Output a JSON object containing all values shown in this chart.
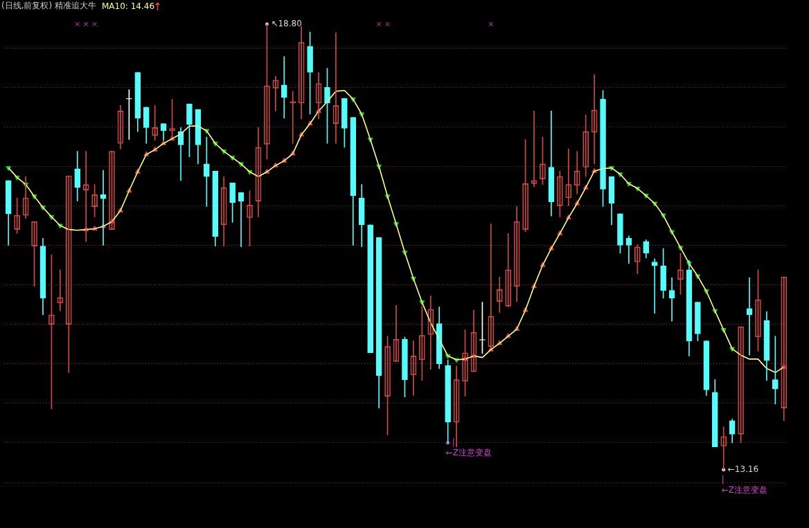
{
  "chart_data": {
    "type": "candlestick",
    "title": "(日线,前复权) 精准追大牛",
    "legend": "top left",
    "grid": "y",
    "yticks": [
      {
        "value": 13,
        "label": null
      },
      {
        "value": 13.5,
        "label": null
      },
      {
        "value": 14,
        "label": null
      },
      {
        "value": 14.5,
        "label": null
      },
      {
        "value": 15,
        "label": null
      },
      {
        "value": 15.5,
        "label": null
      },
      {
        "value": 16,
        "label": null
      },
      {
        "value": 16.5,
        "label": null
      },
      {
        "value": 17,
        "label": null
      },
      {
        "value": 17.5,
        "label": null
      },
      {
        "value": 18,
        "label": null
      },
      {
        "value": 18.5,
        "label": null
      }
    ],
    "categories": [
      null,
      null,
      null,
      null,
      null,
      null,
      null,
      null,
      null,
      null,
      null,
      null,
      null,
      null,
      null,
      null,
      null,
      null,
      null,
      null,
      null,
      null,
      null,
      null,
      null,
      null,
      null,
      null,
      null,
      null,
      null,
      null,
      null,
      null,
      null,
      null,
      null,
      null,
      null,
      null,
      null,
      null,
      null,
      null,
      null,
      null,
      null,
      null,
      null,
      null,
      null,
      null,
      null,
      null,
      null,
      null,
      null,
      null,
      null,
      null,
      null,
      null,
      null,
      null,
      null,
      null,
      null,
      null,
      null,
      null,
      null,
      null,
      null,
      null,
      null,
      null,
      null,
      null,
      null,
      null,
      null,
      null,
      null,
      null,
      null,
      null,
      null,
      null,
      null,
      null,
      null
    ],
    "ohlc": [
      [
        16.82,
        16.82,
        16.0,
        16.4
      ],
      [
        16.2,
        16.6,
        16.15,
        16.38
      ],
      [
        16.38,
        16.87,
        16.34,
        16.6
      ],
      [
        15.99,
        16.3,
        15.48,
        16.3
      ],
      [
        15.99,
        16.09,
        15.12,
        15.33
      ],
      [
        15.0,
        15.88,
        13.93,
        15.12
      ],
      [
        15.27,
        15.69,
        15.17,
        15.34
      ],
      [
        15.0,
        16.88,
        14.39,
        16.88
      ],
      [
        16.97,
        17.19,
        16.56,
        16.73
      ],
      [
        16.7,
        17.19,
        16.05,
        16.77
      ],
      [
        16.49,
        16.77,
        16.36,
        16.64
      ],
      [
        16.64,
        16.95,
        16.0,
        16.59
      ],
      [
        16.2,
        17.19,
        16.2,
        17.19
      ],
      [
        17.29,
        17.77,
        17.22,
        17.7
      ],
      [
        17.85,
        17.97,
        17.34,
        17.85
      ],
      [
        18.19,
        18.19,
        17.44,
        17.61
      ],
      [
        17.75,
        17.75,
        17.29,
        17.49
      ],
      [
        17.39,
        17.77,
        17.33,
        17.49
      ],
      [
        17.54,
        17.54,
        17.33,
        17.45
      ],
      [
        17.45,
        17.85,
        17.37,
        17.48
      ],
      [
        17.44,
        17.49,
        16.82,
        17.27
      ],
      [
        17.79,
        17.79,
        17.12,
        17.53
      ],
      [
        17.72,
        17.72,
        17.03,
        17.27
      ],
      [
        17.03,
        17.37,
        16.49,
        16.87
      ],
      [
        16.94,
        16.94,
        15.99,
        16.11
      ],
      [
        16.26,
        16.87,
        15.99,
        16.73
      ],
      [
        16.79,
        16.79,
        16.29,
        16.54
      ],
      [
        16.67,
        16.67,
        15.98,
        16.56
      ],
      [
        16.35,
        16.69,
        15.99,
        16.51
      ],
      [
        16.56,
        17.49,
        16.36,
        17.24
      ],
      [
        17.28,
        18.8,
        17.09,
        18.02
      ],
      [
        17.99,
        18.14,
        17.7,
        18.09
      ],
      [
        18.03,
        18.39,
        17.61,
        17.87
      ],
      [
        17.8,
        17.95,
        17.29,
        17.82
      ],
      [
        17.8,
        18.77,
        17.6,
        18.57
      ],
      [
        18.52,
        18.7,
        17.66,
        18.19
      ],
      [
        17.8,
        18.19,
        17.6,
        18.05
      ],
      [
        18.0,
        18.24,
        17.29,
        17.8
      ],
      [
        17.54,
        18.69,
        17.29,
        17.77
      ],
      [
        17.86,
        17.86,
        17.24,
        17.48
      ],
      [
        17.62,
        17.62,
        16.0,
        16.63
      ],
      [
        16.6,
        16.77,
        15.98,
        16.26
      ],
      [
        16.26,
        16.26,
        14.64,
        14.64
      ],
      [
        16.1,
        16.1,
        13.94,
        14.35
      ],
      [
        14.09,
        14.85,
        13.6,
        14.72
      ],
      [
        14.53,
        15.24,
        14.53,
        14.81
      ],
      [
        14.81,
        14.84,
        14.08,
        14.3
      ],
      [
        14.36,
        14.79,
        14.1,
        14.6
      ],
      [
        14.55,
        15.23,
        14.29,
        14.86
      ],
      [
        14.87,
        15.36,
        14.43,
        15.19
      ],
      [
        15.01,
        15.22,
        14.44,
        14.5
      ],
      [
        14.48,
        14.55,
        13.5,
        13.76
      ],
      [
        13.76,
        14.47,
        13.45,
        14.3
      ],
      [
        14.28,
        14.93,
        14.09,
        14.64
      ],
      [
        14.4,
        15.18,
        14.4,
        14.9
      ],
      [
        14.8,
        15.28,
        14.63,
        14.8
      ],
      [
        14.72,
        16.27,
        14.72,
        15.1
      ],
      [
        15.29,
        15.6,
        15.15,
        15.44
      ],
      [
        15.23,
        16.15,
        15.22,
        15.69
      ],
      [
        15.48,
        16.49,
        15.29,
        16.3
      ],
      [
        16.2,
        17.34,
        16.17,
        16.78
      ],
      [
        16.78,
        17.7,
        16.74,
        16.82
      ],
      [
        16.84,
        17.37,
        16.77,
        17.03
      ],
      [
        16.99,
        17.7,
        16.37,
        16.55
      ],
      [
        16.5,
        16.94,
        16.36,
        16.87
      ],
      [
        16.6,
        17.22,
        16.5,
        16.77
      ],
      [
        16.76,
        17.19,
        16.65,
        16.94
      ],
      [
        16.99,
        17.65,
        16.87,
        17.44
      ],
      [
        17.43,
        18.16,
        17.03,
        17.71
      ],
      [
        17.85,
        17.96,
        16.49,
        16.71
      ],
      [
        16.87,
        16.87,
        16.26,
        16.53
      ],
      [
        16.4,
        16.4,
        15.9,
        16.0
      ],
      [
        16.09,
        16.12,
        15.77,
        16.0
      ],
      [
        15.79,
        16.01,
        15.64,
        15.98
      ],
      [
        16.05,
        16.07,
        15.84,
        15.9
      ],
      [
        15.79,
        15.83,
        15.14,
        15.74
      ],
      [
        15.74,
        15.96,
        15.33,
        15.43
      ],
      [
        15.43,
        15.59,
        15.04,
        15.33
      ],
      [
        15.57,
        15.9,
        15.38,
        15.69
      ],
      [
        15.69,
        15.81,
        14.6,
        14.79
      ],
      [
        15.28,
        15.28,
        14.79,
        14.88
      ],
      [
        14.79,
        14.79,
        14.1,
        14.17
      ],
      [
        14.14,
        14.3,
        13.45,
        13.45
      ],
      [
        13.46,
        13.7,
        13.16,
        13.58
      ],
      [
        13.78,
        13.8,
        13.5,
        13.61
      ],
      [
        13.61,
        14.97,
        13.5,
        14.97
      ],
      [
        15.2,
        15.59,
        14.61,
        15.12
      ],
      [
        14.84,
        15.69,
        14.66,
        15.31
      ],
      [
        15.05,
        15.16,
        14.29,
        14.54
      ],
      [
        14.3,
        14.85,
        13.99,
        14.18
      ],
      [
        13.94,
        15.6,
        13.78,
        15.6
      ]
    ],
    "colors": [
      "#54fcfc",
      "#d04848",
      "#d04848",
      "#d04848",
      "#54fcfc",
      "#d04848",
      "#d04848",
      "#d04848",
      "#54fcfc",
      "#d04848",
      "#d04848",
      "#54fcfc",
      "#d04848",
      "#d04848",
      "#ffffff",
      "#54fcfc",
      "#54fcfc",
      "#d04848",
      "#54fcfc",
      "#d04848",
      "#54fcfc",
      "#54fcfc",
      "#54fcfc",
      "#54fcfc",
      "#54fcfc",
      "#d04848",
      "#54fcfc",
      "#54fcfc",
      "#d04848",
      "#d04848",
      "#d04848",
      "#d04848",
      "#54fcfc",
      "#d04848",
      "#d04848",
      "#54fcfc",
      "#d04848",
      "#54fcfc",
      "#d04848",
      "#54fcfc",
      "#54fcfc",
      "#54fcfc",
      "#54fcfc",
      "#54fcfc",
      "#d04848",
      "#d04848",
      "#54fcfc",
      "#d04848",
      "#d04848",
      "#d04848",
      "#54fcfc",
      "#54fcfc",
      "#d04848",
      "#d04848",
      "#d04848",
      "#ffffff",
      "#d04848",
      "#d04848",
      "#d04848",
      "#d04848",
      "#d04848",
      "#d04848",
      "#d04848",
      "#54fcfc",
      "#d04848",
      "#d04848",
      "#d04848",
      "#d04848",
      "#d04848",
      "#54fcfc",
      "#54fcfc",
      "#54fcfc",
      "#54fcfc",
      "#d04848",
      "#54fcfc",
      "#54fcfc",
      "#54fcfc",
      "#54fcfc",
      "#d04848",
      "#54fcfc",
      "#54fcfc",
      "#54fcfc",
      "#54fcfc",
      "#d04848",
      "#54fcfc",
      "#d04848",
      "#54fcfc",
      "#d04848",
      "#54fcfc",
      "#54fcfc",
      "#d04848"
    ],
    "series": [
      {
        "name": "MA10: 14.46",
        "type": "line",
        "color": "#ffff88",
        "marker": "none",
        "values": [
          16.98,
          16.86,
          16.77,
          16.62,
          16.48,
          16.36,
          16.25,
          16.2,
          16.19,
          16.2,
          16.21,
          16.24,
          16.3,
          16.44,
          16.69,
          16.93,
          17.15,
          17.21,
          17.29,
          17.35,
          17.41,
          17.51,
          17.51,
          17.45,
          17.29,
          17.19,
          17.11,
          17.03,
          16.93,
          16.87,
          16.93,
          17.01,
          17.07,
          17.16,
          17.4,
          17.54,
          17.7,
          17.82,
          17.95,
          17.96,
          17.85,
          17.66,
          17.34,
          17.0,
          16.62,
          16.27,
          15.91,
          15.58,
          15.28,
          15.02,
          14.81,
          14.6,
          14.55,
          14.56,
          14.6,
          14.58,
          14.68,
          14.76,
          14.85,
          14.94,
          15.18,
          15.48,
          15.75,
          15.96,
          16.15,
          16.35,
          16.53,
          16.73,
          16.94,
          16.97,
          16.98,
          16.9,
          16.78,
          16.72,
          16.63,
          16.53,
          16.38,
          16.17,
          15.97,
          15.77,
          15.61,
          15.42,
          15.17,
          14.93,
          14.69,
          14.61,
          14.56,
          14.56,
          14.44,
          14.39,
          14.46
        ]
      },
      {
        "type": "scatter",
        "color": "#e84040",
        "marker": "triangle",
        "values": [
          null,
          null,
          null,
          null,
          null,
          null,
          null,
          null,
          null,
          16.2,
          16.21,
          16.24,
          16.3,
          16.44,
          16.69,
          16.93,
          17.15,
          17.21,
          17.29,
          17.35,
          null,
          null,
          null,
          null,
          null,
          null,
          null,
          null,
          null,
          null,
          16.93,
          17.01,
          17.07,
          17.16,
          17.4,
          17.54,
          17.7,
          null,
          null,
          null,
          null,
          null,
          null,
          null,
          null,
          null,
          null,
          null,
          null,
          null,
          null,
          null,
          null,
          14.56,
          14.6,
          null,
          14.68,
          14.76,
          14.85,
          14.94,
          15.18,
          15.48,
          15.75,
          15.96,
          16.15,
          16.35,
          16.53,
          16.73,
          16.94,
          null,
          null,
          null,
          null,
          null,
          null,
          null,
          null,
          null,
          null,
          null,
          null,
          null,
          null,
          null,
          null,
          null,
          null,
          null,
          null,
          null,
          14.46
        ]
      },
      {
        "type": "scatter",
        "color": "#22c822",
        "marker": "triangle",
        "values": [
          16.98,
          16.86,
          16.77,
          16.62,
          16.48,
          16.36,
          16.25,
          null,
          null,
          null,
          null,
          null,
          null,
          null,
          null,
          null,
          null,
          null,
          null,
          null,
          null,
          null,
          null,
          17.45,
          17.29,
          17.19,
          17.11,
          17.03,
          16.93,
          null,
          null,
          null,
          null,
          null,
          null,
          null,
          null,
          null,
          null,
          null,
          17.85,
          17.66,
          17.34,
          17.0,
          16.62,
          16.27,
          15.91,
          15.58,
          15.28,
          null,
          null,
          14.6,
          14.55,
          null,
          null,
          null,
          null,
          null,
          null,
          null,
          null,
          null,
          null,
          null,
          null,
          null,
          null,
          null,
          null,
          null,
          16.98,
          16.9,
          16.78,
          16.72,
          16.63,
          16.53,
          16.38,
          16.17,
          15.97,
          15.77,
          15.61,
          15.42,
          15.17,
          14.93,
          14.69,
          null,
          null,
          null,
          null,
          null,
          null
        ]
      },
      {
        "type": "scatter",
        "color": "#cc44cc",
        "marker": "cross",
        "values": [
          null,
          null,
          null,
          null,
          null,
          null,
          null,
          null,
          18.8,
          18.8,
          18.8,
          null,
          null,
          null,
          null,
          null,
          null,
          null,
          null,
          null,
          null,
          null,
          null,
          null,
          null,
          null,
          null,
          null,
          null,
          null,
          null,
          null,
          null,
          null,
          null,
          null,
          null,
          null,
          null,
          null,
          null,
          null,
          null,
          18.8,
          18.8,
          null,
          null,
          null,
          null,
          null,
          null,
          null,
          null,
          null,
          null,
          null,
          18.8,
          null,
          null,
          null,
          null,
          null,
          null,
          null,
          null,
          null,
          null,
          null,
          null,
          null,
          null,
          null,
          null,
          null,
          null,
          null,
          null,
          null,
          null,
          null,
          null,
          null,
          null,
          null,
          null,
          null,
          null,
          null,
          null,
          null,
          null
        ]
      },
      {
        "type": "scatter",
        "color": "#d8d8d8",
        "marker": "circle",
        "values": [
          null,
          null,
          null,
          null,
          null,
          null,
          null,
          null,
          null,
          null,
          null,
          null,
          null,
          null,
          null,
          null,
          null,
          null,
          null,
          null,
          null,
          null,
          null,
          null,
          null,
          null,
          null,
          null,
          null,
          null,
          18.8,
          null,
          null,
          null,
          null,
          null,
          null,
          null,
          null,
          null,
          null,
          null,
          null,
          null,
          null,
          null,
          null,
          null,
          null,
          null,
          null,
          null,
          null,
          null,
          null,
          null,
          null,
          null,
          null,
          null,
          null,
          null,
          null,
          null,
          null,
          null,
          null,
          null,
          null,
          null,
          null,
          null,
          null,
          null,
          null,
          null,
          null,
          null,
          null,
          null,
          null,
          null,
          null,
          13.16,
          null,
          null,
          null,
          null,
          null,
          null,
          null
        ],
        "value_labels": [
          null,
          null,
          null,
          null,
          null,
          null,
          null,
          null,
          null,
          null,
          null,
          null,
          null,
          null,
          null,
          null,
          null,
          null,
          null,
          null,
          null,
          null,
          null,
          null,
          null,
          null,
          null,
          null,
          null,
          null,
          "↖18.80",
          null,
          null,
          null,
          null,
          null,
          null,
          null,
          null,
          null,
          null,
          null,
          null,
          null,
          null,
          null,
          null,
          null,
          null,
          null,
          null,
          null,
          null,
          null,
          null,
          null,
          null,
          null,
          null,
          null,
          null,
          null,
          null,
          null,
          null,
          null,
          null,
          null,
          null,
          null,
          null,
          null,
          null,
          null,
          null,
          null,
          null,
          null,
          null,
          null,
          null,
          null,
          null,
          "←13.16",
          null,
          null,
          null,
          null,
          null,
          null,
          null
        ]
      },
      {
        "type": "scatter",
        "color": "#cc44cc",
        "marker": "circle",
        "values": [
          null,
          null,
          null,
          null,
          null,
          null,
          null,
          null,
          null,
          null,
          null,
          null,
          null,
          null,
          null,
          null,
          null,
          null,
          null,
          null,
          null,
          null,
          null,
          null,
          null,
          null,
          null,
          null,
          null,
          null,
          null,
          null,
          null,
          null,
          null,
          null,
          null,
          null,
          null,
          null,
          null,
          null,
          null,
          null,
          null,
          null,
          null,
          null,
          null,
          null,
          null,
          13.5,
          null,
          null,
          null,
          null,
          null,
          null,
          null,
          null,
          null,
          null,
          null,
          null,
          null,
          null,
          null,
          null,
          null,
          null,
          null,
          null,
          null,
          null,
          null,
          null,
          null,
          null,
          null,
          null,
          null,
          null,
          null,
          13.16,
          null,
          null,
          null,
          null,
          null,
          null,
          null
        ],
        "value_labels": [
          null,
          null,
          null,
          null,
          null,
          null,
          null,
          null,
          null,
          null,
          null,
          null,
          null,
          null,
          null,
          null,
          null,
          null,
          null,
          null,
          null,
          null,
          null,
          null,
          null,
          null,
          null,
          null,
          null,
          null,
          null,
          null,
          null,
          null,
          null,
          null,
          null,
          null,
          null,
          null,
          null,
          null,
          null,
          null,
          null,
          null,
          null,
          null,
          null,
          null,
          null,
          "|",
          null,
          null,
          null,
          null,
          null,
          null,
          null,
          null,
          null,
          null,
          null,
          null,
          null,
          null,
          null,
          null,
          null,
          null,
          null,
          null,
          null,
          null,
          null,
          null,
          null,
          null,
          null,
          null,
          null,
          null,
          null,
          "|",
          null,
          null,
          null,
          null,
          null,
          null,
          null
        ]
      },
      {
        "type": "scatter",
        "color": "#cc44cc",
        "marker": "circle",
        "values": [
          null,
          null,
          null,
          null,
          null,
          null,
          null,
          null,
          null,
          null,
          null,
          null,
          null,
          null,
          null,
          null,
          null,
          null,
          null,
          null,
          null,
          null,
          null,
          null,
          null,
          null,
          null,
          null,
          null,
          null,
          null,
          null,
          null,
          null,
          null,
          null,
          null,
          null,
          null,
          null,
          null,
          null,
          null,
          null,
          null,
          null,
          null,
          null,
          null,
          null,
          null,
          13.5,
          null,
          null,
          null,
          null,
          null,
          null,
          null,
          null,
          null,
          null,
          null,
          null,
          null,
          null,
          null,
          null,
          null,
          null,
          null,
          null,
          null,
          null,
          null,
          null,
          null,
          null,
          null,
          null,
          null,
          null,
          null,
          13.16,
          null,
          null,
          null,
          null,
          null,
          null,
          null
        ],
        "value_labels": [
          null,
          null,
          null,
          null,
          null,
          null,
          null,
          null,
          null,
          null,
          null,
          null,
          null,
          null,
          null,
          null,
          null,
          null,
          null,
          null,
          null,
          null,
          null,
          null,
          null,
          null,
          null,
          null,
          null,
          null,
          null,
          null,
          null,
          null,
          null,
          null,
          null,
          null,
          null,
          null,
          null,
          null,
          null,
          null,
          null,
          null,
          null,
          null,
          null,
          null,
          null,
          "←Z注意变盘",
          null,
          null,
          null,
          null,
          null,
          null,
          null,
          null,
          null,
          null,
          null,
          null,
          null,
          null,
          null,
          null,
          null,
          null,
          null,
          null,
          null,
          null,
          null,
          null,
          null,
          null,
          null,
          null,
          null,
          null,
          null,
          "←Z注意变盘",
          null,
          null,
          null,
          null,
          null,
          null,
          null
        ]
      }
    ]
  }
}
